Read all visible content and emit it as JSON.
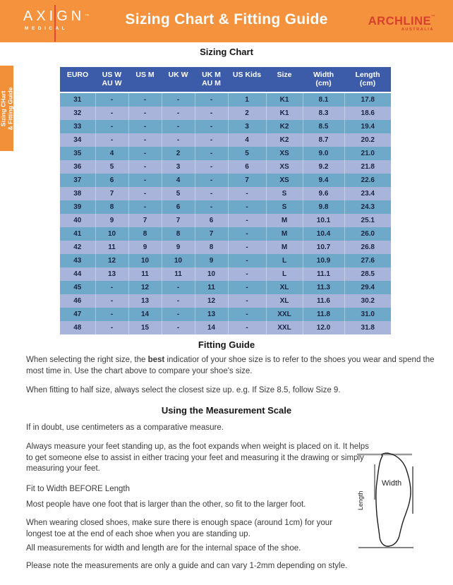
{
  "header": {
    "brand_left": {
      "name": "AXIGN",
      "tm": "™",
      "sub": "MEDICAL"
    },
    "title": "Sizing Chart & Fitting Guide",
    "brand_right": {
      "name": "ARCHLINE",
      "tm": "™",
      "sub": "AUSTRALIA"
    }
  },
  "sidebar_tab": {
    "line1": "Sizing CHart",
    "line2": "& Fitting Guide"
  },
  "sizing_chart": {
    "heading": "Sizing Chart",
    "columns": [
      {
        "label": "EURO",
        "sub": ""
      },
      {
        "label": "US W",
        "sub": "AU W"
      },
      {
        "label": "US M",
        "sub": ""
      },
      {
        "label": "UK W",
        "sub": ""
      },
      {
        "label": "UK M",
        "sub": "AU M"
      },
      {
        "label": "US Kids",
        "sub": ""
      },
      {
        "label": "Size",
        "sub": ""
      },
      {
        "label": "Width",
        "sub": "(cm)"
      },
      {
        "label": "Length",
        "sub": "(cm)"
      }
    ],
    "rows": [
      [
        "31",
        "-",
        "-",
        "-",
        "-",
        "1",
        "K1",
        "8.1",
        "17.8"
      ],
      [
        "32",
        "-",
        "-",
        "-",
        "-",
        "2",
        "K1",
        "8.3",
        "18.6"
      ],
      [
        "33",
        "-",
        "-",
        "-",
        "-",
        "3",
        "K2",
        "8.5",
        "19.4"
      ],
      [
        "34",
        "-",
        "-",
        "-",
        "-",
        "4",
        "K2",
        "8.7",
        "20.2"
      ],
      [
        "35",
        "4",
        "-",
        "2",
        "-",
        "5",
        "XS",
        "9.0",
        "21.0"
      ],
      [
        "36",
        "5",
        "-",
        "3",
        "-",
        "6",
        "XS",
        "9.2",
        "21.8"
      ],
      [
        "37",
        "6",
        "-",
        "4",
        "-",
        "7",
        "XS",
        "9.4",
        "22.6"
      ],
      [
        "38",
        "7",
        "-",
        "5",
        "-",
        "-",
        "S",
        "9.6",
        "23.4"
      ],
      [
        "39",
        "8",
        "-",
        "6",
        "-",
        "-",
        "S",
        "9.8",
        "24.3"
      ],
      [
        "40",
        "9",
        "7",
        "7",
        "6",
        "-",
        "M",
        "10.1",
        "25.1"
      ],
      [
        "41",
        "10",
        "8",
        "8",
        "7",
        "-",
        "M",
        "10.4",
        "26.0"
      ],
      [
        "42",
        "11",
        "9",
        "9",
        "8",
        "-",
        "M",
        "10.7",
        "26.8"
      ],
      [
        "43",
        "12",
        "10",
        "10",
        "9",
        "-",
        "L",
        "10.9",
        "27.6"
      ],
      [
        "44",
        "13",
        "11",
        "11",
        "10",
        "-",
        "L",
        "11.1",
        "28.5"
      ],
      [
        "45",
        "-",
        "12",
        "-",
        "11",
        "-",
        "XL",
        "11.3",
        "29.4"
      ],
      [
        "46",
        "-",
        "13",
        "-",
        "12",
        "-",
        "XL",
        "11.6",
        "30.2"
      ],
      [
        "47",
        "-",
        "14",
        "-",
        "13",
        "-",
        "XXL",
        "11.8",
        "31.0"
      ],
      [
        "48",
        "-",
        "15",
        "-",
        "14",
        "-",
        "XXL",
        "12.0",
        "31.8"
      ]
    ]
  },
  "fitting_guide": {
    "heading": "Fitting Guide",
    "para1_pre": "When selecting the right size, the ",
    "para1_bold": "best",
    "para1_post": " indicatior of your shoe size is to refer to the shoes you wear and spend the most time in. Use the chart above to compare your shoe's size.",
    "para2": "When fitting to half size, always select the closest size up. e.g. If Size 8.5, follow Size 9."
  },
  "measurement": {
    "heading": "Using the Measurement Scale",
    "paras": [
      "If in doubt, use centimeters as a comparative measure.",
      "Always measure your feet standing up, as the foot expands when weight is placed on it. It helps to get someone else to assist in either tracing your feet and measuring it the drawing or simply measuring your feet.",
      "Fit to Width BEFORE Length",
      "Most people have one foot that is larger than the other, so fit to the larger foot.",
      "When wearing closed shoes, make sure there is enough space (around 1cm) for your longest toe at the end of each shoe when you are standing up.",
      "All measurements for width and length are for the internal space of the shoe.",
      "Please note the measurements are only a guide and can vary 1-2mm depending on style."
    ],
    "diagram": {
      "width_label": "Width",
      "length_label": "Length"
    }
  },
  "colors": {
    "banner_orange": "#F4923D",
    "tab_orange": "#F19038",
    "logo_red": "#D8402E",
    "table_header_blue": "#3C5BA9",
    "row_dark_blue": "#6FA9CA",
    "row_light_blue": "#A9B4DB"
  }
}
